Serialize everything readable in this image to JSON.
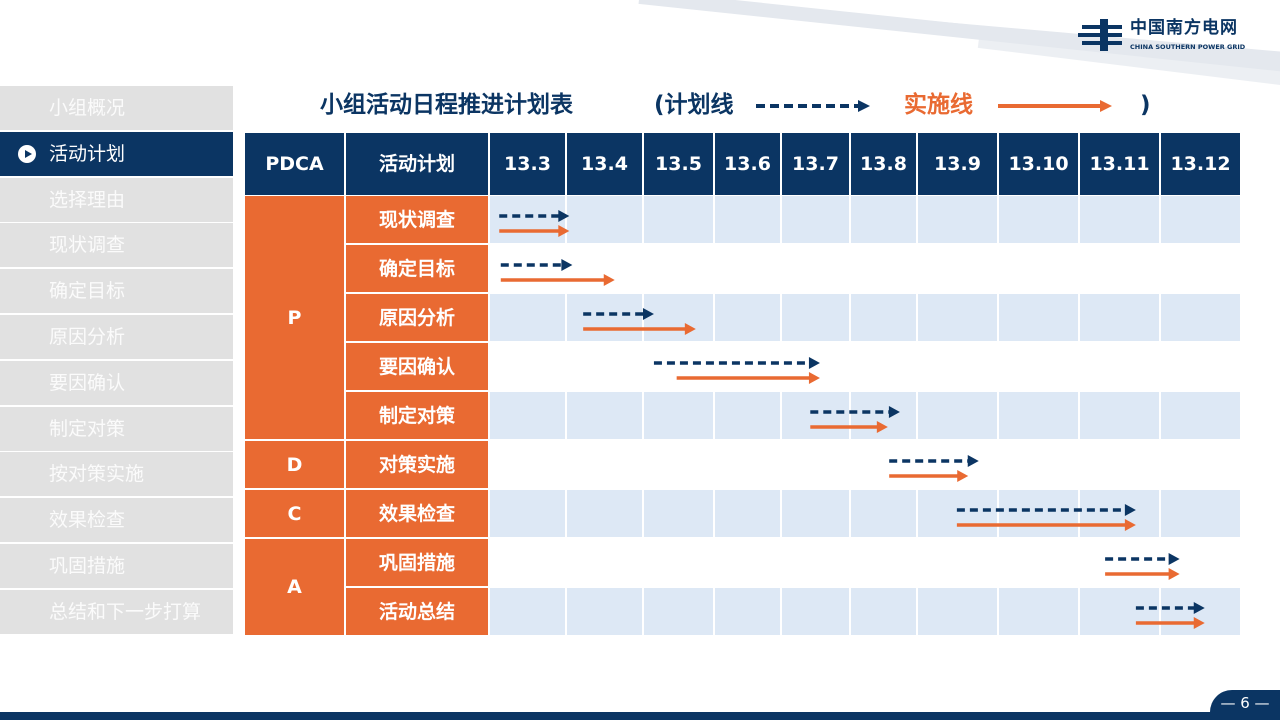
{
  "logo": {
    "name_cn": "中国南方电网",
    "name_en": "CHINA SOUTHERN POWER GRID"
  },
  "sidebar": {
    "items": [
      {
        "label": "小组概况",
        "active": false
      },
      {
        "label": "活动计划",
        "active": true
      },
      {
        "label": "选择理由",
        "active": false
      },
      {
        "label": "现状调查",
        "active": false
      },
      {
        "label": "确定目标",
        "active": false
      },
      {
        "label": "原因分析",
        "active": false
      },
      {
        "label": "要因确认",
        "active": false
      },
      {
        "label": "制定对策",
        "active": false
      },
      {
        "label": "按对策实施",
        "active": false
      },
      {
        "label": "效果检查",
        "active": false
      },
      {
        "label": "巩固措施",
        "active": false
      },
      {
        "label": "总结和下一步打算",
        "active": false
      }
    ]
  },
  "title": {
    "main": "小组活动日程推进计划表",
    "open": "(计划线",
    "actual_label": "实施线",
    "close": ")"
  },
  "colors": {
    "navy": "#0b3563",
    "orange": "#e96a32",
    "row_alt": "#dde8f5"
  },
  "chart_data": {
    "type": "gantt",
    "headers": {
      "pdca": "PDCA",
      "plan": "活动计划"
    },
    "months": [
      "13.3",
      "13.4",
      "13.5",
      "13.6",
      "13.7",
      "13.8",
      "13.9",
      "13.10",
      "13.11",
      "13.12"
    ],
    "legend": [
      {
        "name": "计划线",
        "style": "dashed",
        "color": "#0b3563"
      },
      {
        "name": "实施线",
        "style": "solid",
        "color": "#e96a32"
      }
    ],
    "phases": [
      {
        "label": "P",
        "rows": 5
      },
      {
        "label": "D",
        "rows": 1
      },
      {
        "label": "C",
        "rows": 1
      },
      {
        "label": "A",
        "rows": 2
      }
    ],
    "tasks": [
      {
        "name": "现状调查",
        "plan": [
          3.12,
          4.03
        ],
        "actual": [
          3.12,
          4.03
        ]
      },
      {
        "name": "确定目标",
        "plan": [
          3.14,
          4.07
        ],
        "actual": [
          3.14,
          4.62
        ]
      },
      {
        "name": "原因分析",
        "plan": [
          4.21,
          5.14
        ],
        "actual": [
          4.21,
          5.73
        ]
      },
      {
        "name": "要因确认",
        "plan": [
          5.14,
          7.55
        ],
        "actual": [
          5.46,
          7.55
        ]
      },
      {
        "name": "制定对策",
        "plan": [
          7.41,
          8.73
        ],
        "actual": [
          7.41,
          8.55
        ]
      },
      {
        "name": "对策实施",
        "plan": [
          8.57,
          9.75
        ],
        "actual": [
          8.57,
          9.62
        ]
      },
      {
        "name": "效果检查",
        "plan": [
          9.48,
          11.69
        ],
        "actual": [
          9.48,
          11.69
        ]
      },
      {
        "name": "巩固措施",
        "plan": [
          11.31,
          12.23
        ],
        "actual": [
          11.31,
          12.23
        ]
      },
      {
        "name": "活动总结",
        "plan": [
          11.69,
          12.54
        ],
        "actual": [
          11.69,
          12.54
        ]
      }
    ]
  },
  "page": {
    "number": "— 6 —"
  }
}
